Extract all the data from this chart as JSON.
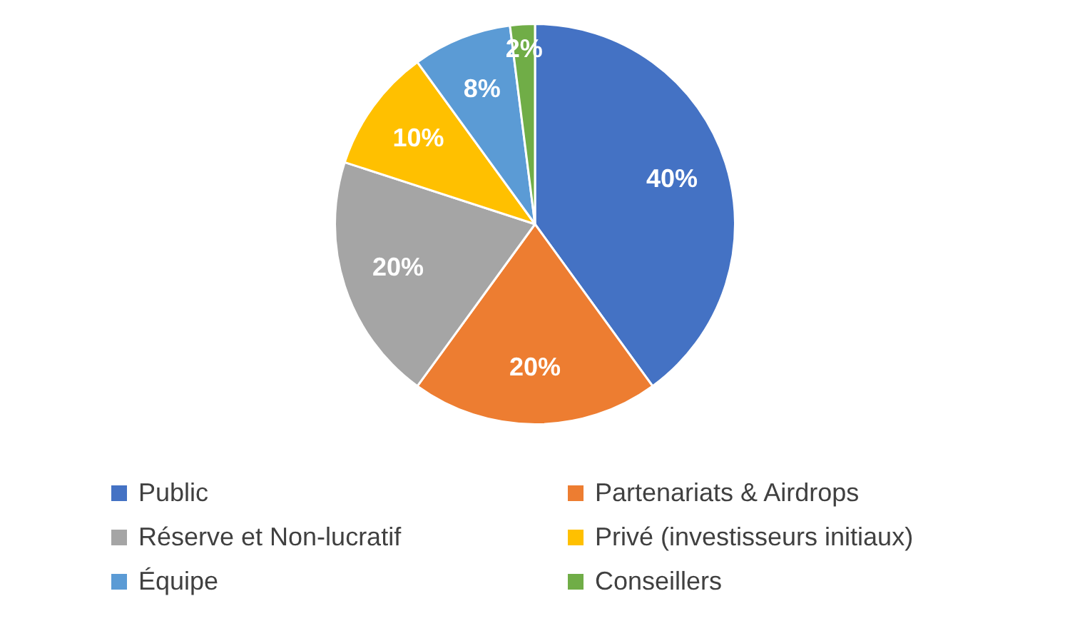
{
  "chart_data": {
    "type": "pie",
    "categories": [
      "Public",
      "Partenariats & Airdrops",
      "Réserve et Non-lucratif",
      "Privé (investisseurs initiaux)",
      "Équipe",
      "Conseillers"
    ],
    "values": [
      40,
      20,
      20,
      10,
      8,
      2
    ],
    "colors": [
      "#4472c4",
      "#ed7d31",
      "#a5a5a5",
      "#ffc000",
      "#5b9bd5",
      "#70ad47"
    ],
    "value_labels": [
      "40%",
      "20%",
      "20%",
      "10%",
      "8%",
      "2%"
    ],
    "legend": "bottom"
  }
}
